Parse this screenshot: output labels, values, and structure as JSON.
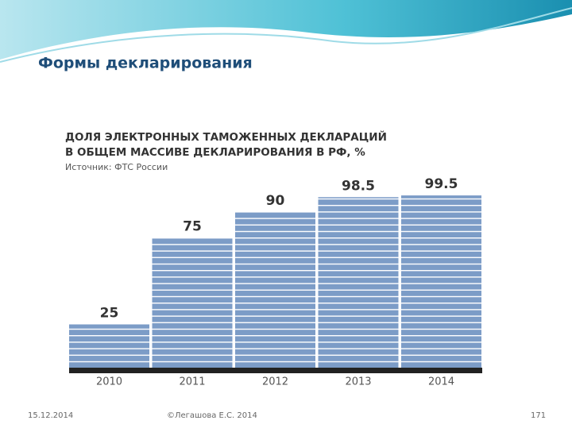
{
  "slide_title": "Формы декларирования",
  "chart_data": {
    "type": "bar",
    "title": [
      "ДОЛЯ ЭЛЕКТРОННЫХ ТАМОЖЕННЫХ ДЕКЛАРАЦИЙ",
      "В ОБЩЕМ МАССИВЕ ДЕКЛАРИРОВАНИЯ В РФ, %"
    ],
    "subtitle": "Источник: ФТС России",
    "categories": [
      "2010",
      "2011",
      "2012",
      "2013",
      "2014"
    ],
    "values": [
      25,
      75,
      90,
      98.5,
      99.5
    ],
    "color": "#7c9cc7"
  },
  "footer": {
    "date": "15.12.2014",
    "author": "©Легашова Е.С. 2014",
    "page": "171"
  }
}
